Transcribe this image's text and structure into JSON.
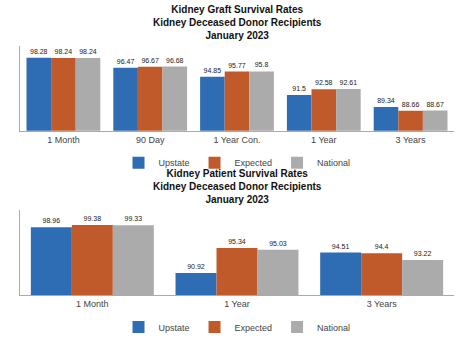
{
  "chart_data": [
    {
      "type": "bar",
      "title": "Kidney Graft Survival Rates\nKidney Deceased Donor Recipients\nJanuary 2023",
      "categories": [
        "1 Month",
        "90 Day",
        "1 Year Con.",
        "1 Year",
        "3 Years"
      ],
      "series": [
        {
          "name": "Upstate",
          "color": "#2E6DB4",
          "values": [
            98.28,
            96.47,
            94.85,
            91.5,
            89.34
          ]
        },
        {
          "name": "Expected",
          "color": "#C05A2A",
          "values": [
            98.24,
            96.67,
            95.77,
            92.58,
            88.66
          ]
        },
        {
          "name": "National",
          "color": "#ABABAB",
          "values": [
            98.24,
            96.68,
            95.8,
            92.61,
            88.67
          ]
        }
      ],
      "ylim": [
        85.0,
        100.5
      ],
      "data_labels": true,
      "tick_labels": "x",
      "grid": false,
      "legend": "bottom"
    },
    {
      "type": "bar",
      "title": "Kidney Patient Survival Rates\nKidney Deceased Donor Recipients\nJanuary 2023",
      "categories": [
        "1 Month",
        "1 Year",
        "3 Years"
      ],
      "series": [
        {
          "name": "Upstate",
          "color": "#2E6DB4",
          "values": [
            98.96,
            90.92,
            94.51
          ]
        },
        {
          "name": "Expected",
          "color": "#C05A2A",
          "values": [
            99.38,
            95.34,
            94.4
          ]
        },
        {
          "name": "National",
          "color": "#ABABAB",
          "values": [
            99.33,
            95.03,
            93.22
          ]
        }
      ],
      "ylim": [
        87.0,
        102.0
      ],
      "data_labels": true,
      "tick_labels": "x",
      "grid": false,
      "legend": "bottom"
    }
  ]
}
